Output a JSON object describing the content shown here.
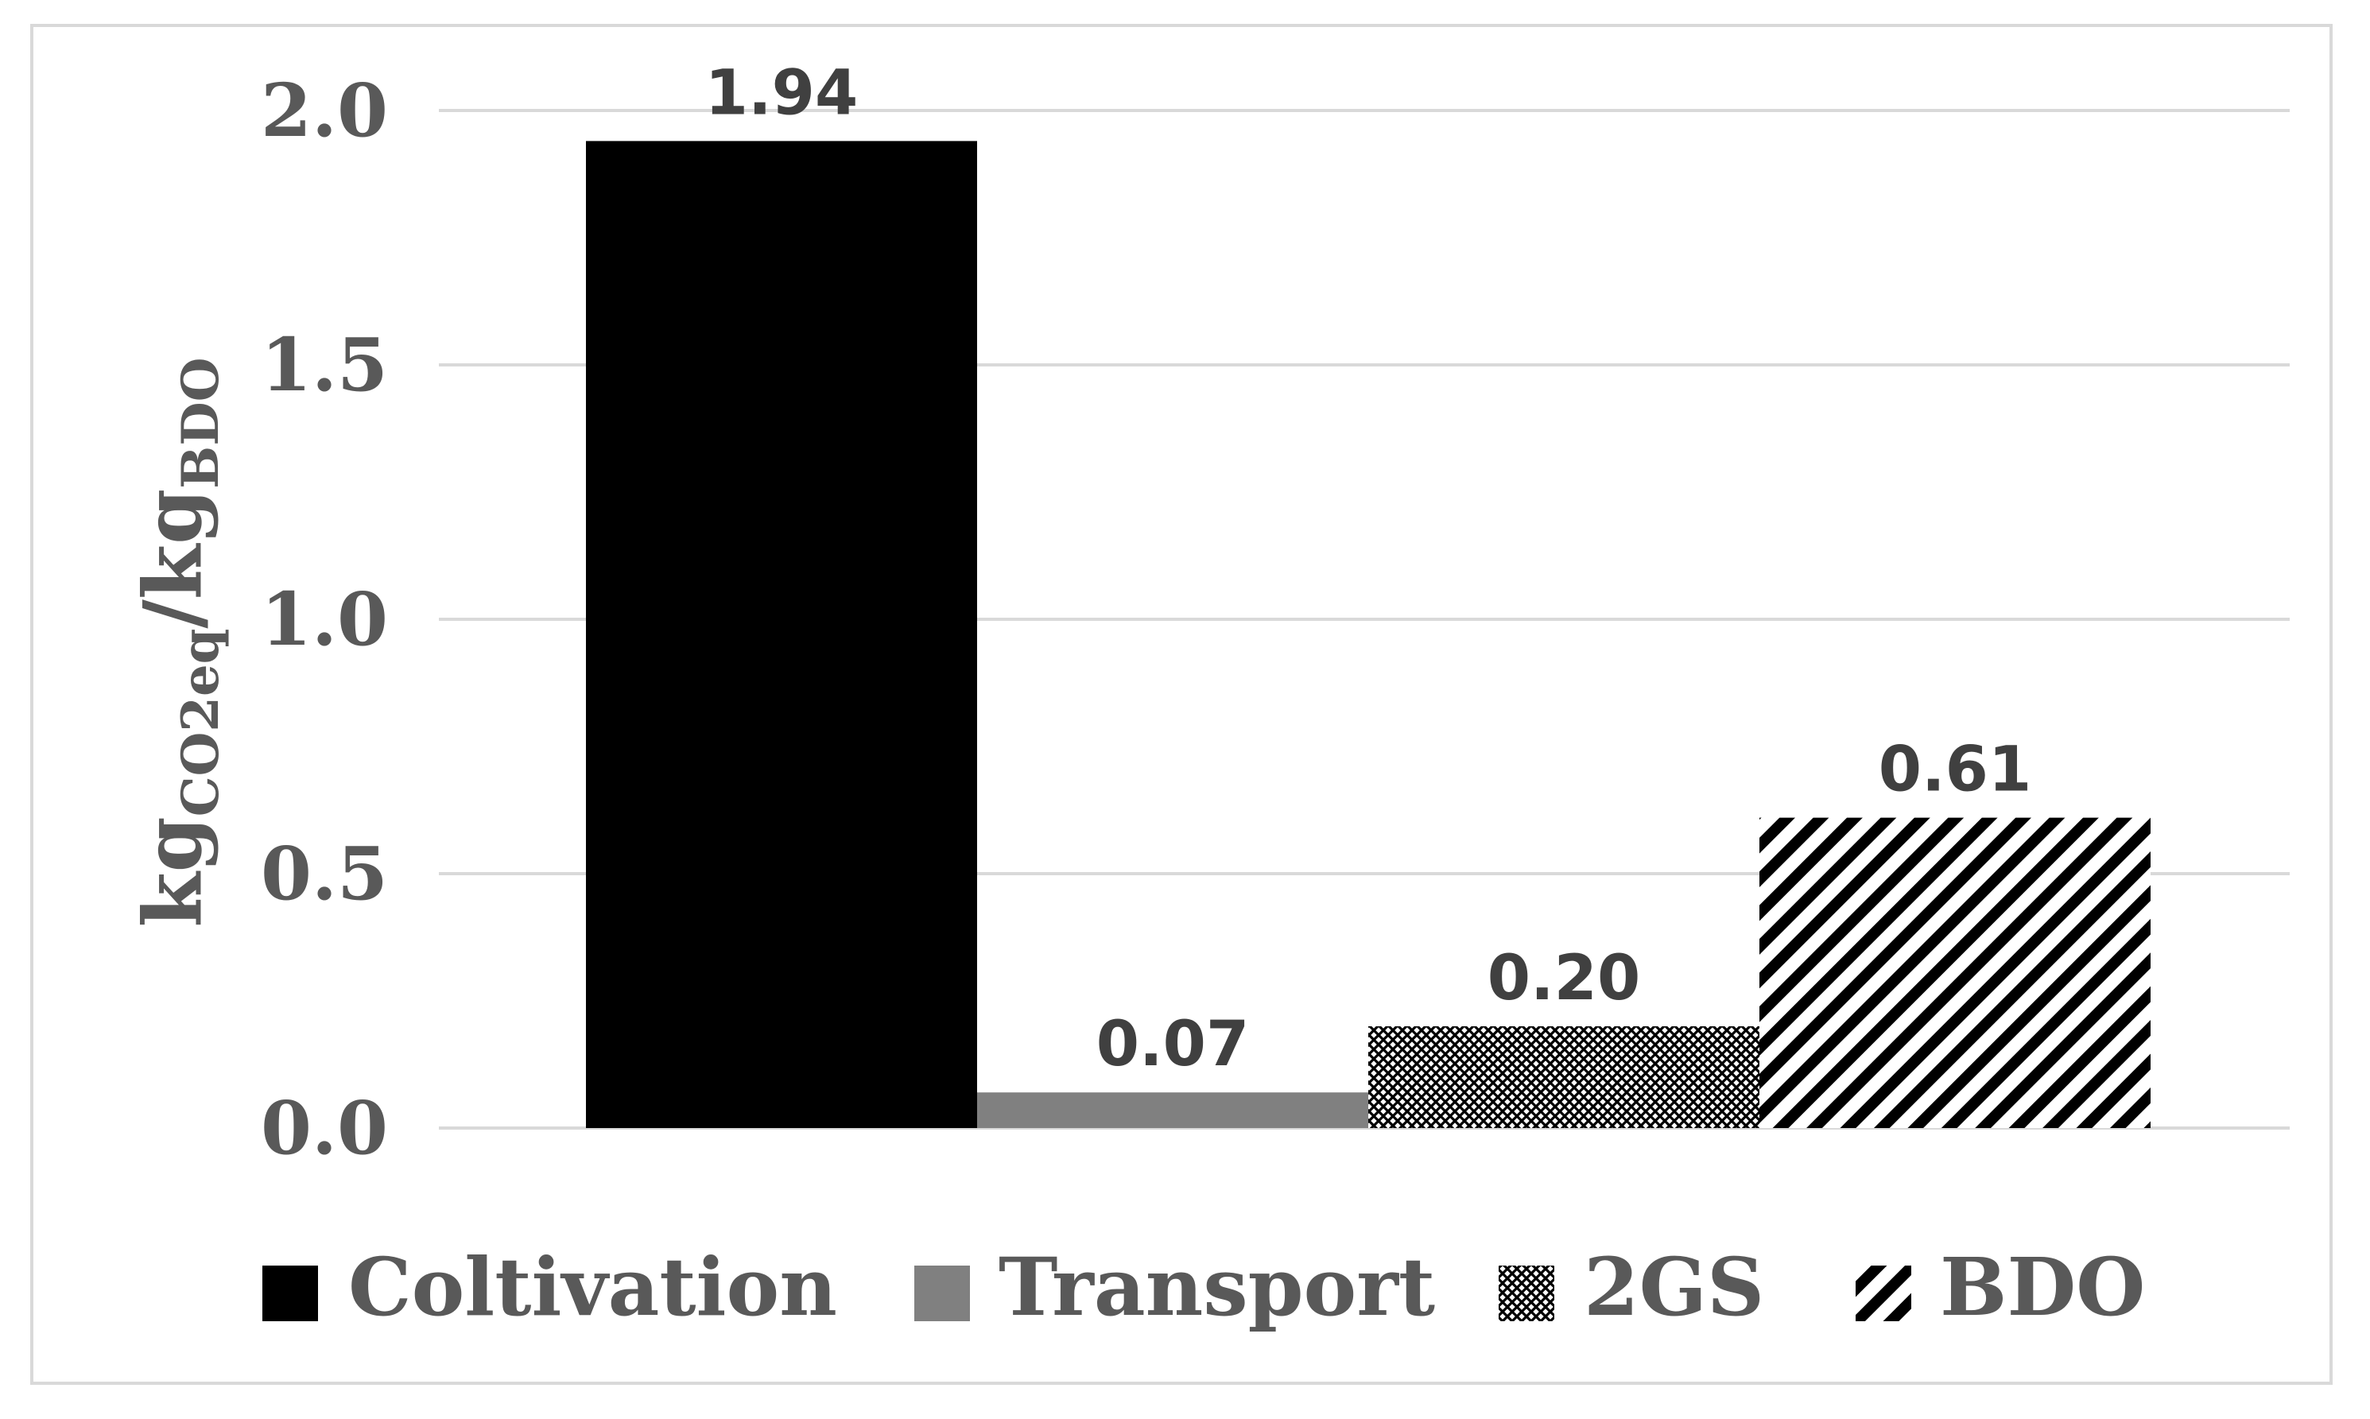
{
  "chart_data": {
    "type": "bar",
    "categories": [
      "Coltivation",
      "Transport",
      "2GS",
      "BDO"
    ],
    "values": [
      1.94,
      0.07,
      0.2,
      0.61
    ],
    "data_labels": [
      "1.94",
      "0.07",
      "0.20",
      "0.61"
    ],
    "ylabel": {
      "main1": "kg",
      "sub1": "CO2eq",
      "main2": "/kg",
      "sub2": "BDO"
    },
    "ylim": [
      0,
      2.0
    ],
    "yticks": [
      "0.0",
      "0.5",
      "1.0",
      "1.5",
      "2.0"
    ],
    "ytick_values": [
      0,
      0.5,
      1.0,
      1.5,
      2.0
    ],
    "grid": true,
    "legend_position": "bottom",
    "series_styles": [
      {
        "name": "Coltivation",
        "color": "#000000",
        "pattern": "solid"
      },
      {
        "name": "Transport",
        "color": "#808080",
        "pattern": "solid"
      },
      {
        "name": "2GS",
        "color": "#000000",
        "pattern": "crosshatch"
      },
      {
        "name": "BDO",
        "color": "#000000",
        "pattern": "diagonal-stripes"
      }
    ],
    "gridline_color": "#d9d9d9",
    "text_color": "#595959"
  }
}
